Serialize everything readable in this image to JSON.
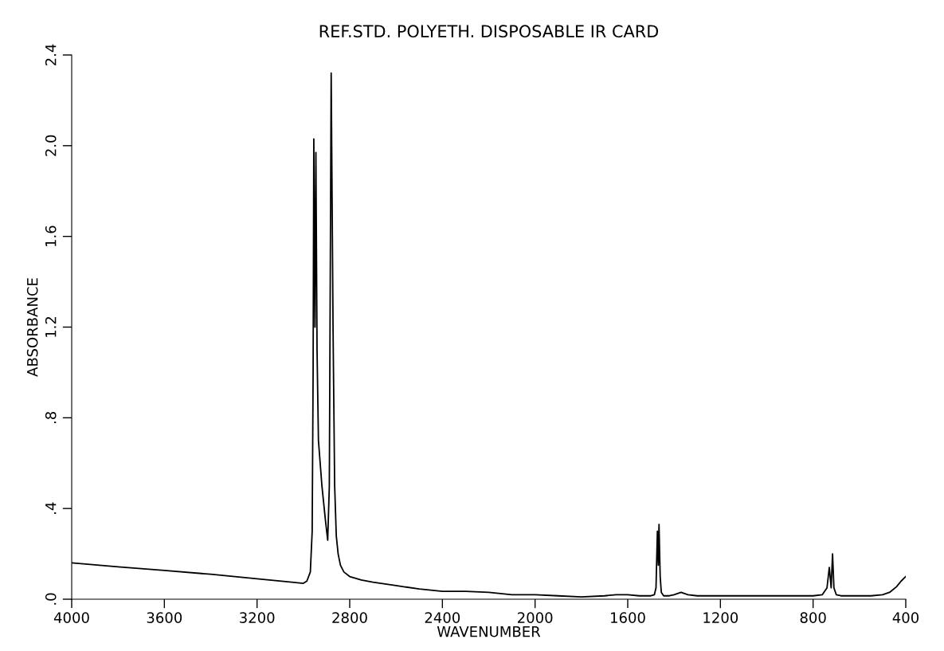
{
  "chart_data": {
    "type": "line",
    "title": "REF.STD. POLYETH. DISPOSABLE IR CARD",
    "xlabel": "WAVENUMBER",
    "ylabel": "ABSORBANCE",
    "series": [
      {
        "color": "#000000",
        "x": [
          4000,
          3800,
          3600,
          3400,
          3200,
          3050,
          3000,
          2985,
          2970,
          2962,
          2958,
          2955,
          2950,
          2946,
          2941,
          2935,
          2920,
          2905,
          2895,
          2888,
          2880,
          2872,
          2865,
          2858,
          2850,
          2840,
          2825,
          2800,
          2750,
          2700,
          2600,
          2500,
          2400,
          2300,
          2200,
          2100,
          2000,
          1900,
          1800,
          1700,
          1650,
          1600,
          1550,
          1500,
          1485,
          1478,
          1472,
          1468,
          1465,
          1460,
          1455,
          1445,
          1420,
          1400,
          1370,
          1340,
          1300,
          1200,
          1000,
          900,
          800,
          760,
          740,
          730,
          722,
          716,
          710,
          700,
          680,
          600,
          550,
          500,
          470,
          440,
          420,
          400
        ],
        "values": [
          0.16,
          0.143,
          0.127,
          0.11,
          0.09,
          0.075,
          0.07,
          0.08,
          0.12,
          0.3,
          1.0,
          2.03,
          1.2,
          1.97,
          1.1,
          0.7,
          0.5,
          0.35,
          0.26,
          0.5,
          2.32,
          1.2,
          0.5,
          0.28,
          0.2,
          0.15,
          0.12,
          0.1,
          0.085,
          0.075,
          0.06,
          0.045,
          0.035,
          0.035,
          0.03,
          0.02,
          0.02,
          0.015,
          0.01,
          0.015,
          0.02,
          0.02,
          0.015,
          0.015,
          0.02,
          0.05,
          0.3,
          0.15,
          0.33,
          0.1,
          0.03,
          0.015,
          0.015,
          0.02,
          0.03,
          0.02,
          0.015,
          0.015,
          0.015,
          0.015,
          0.015,
          0.02,
          0.05,
          0.14,
          0.05,
          0.2,
          0.05,
          0.02,
          0.015,
          0.015,
          0.015,
          0.02,
          0.03,
          0.055,
          0.08,
          0.1
        ]
      }
    ],
    "xlim": [
      4000,
      400
    ],
    "ylim": [
      0,
      2.4
    ],
    "xticks": [
      4000,
      3600,
      3200,
      2800,
      2400,
      2000,
      1600,
      1200,
      800,
      400
    ],
    "yticks": [
      {
        "value": 0,
        "label": ".0"
      },
      {
        "value": 0.4,
        "label": ".4"
      },
      {
        "value": 0.8,
        "label": ".8"
      },
      1.2,
      1.6,
      {
        "value": 2,
        "label": "2.0"
      },
      2.4
    ],
    "grid": false,
    "legend": false,
    "marker": "none",
    "line_style": "solid"
  }
}
